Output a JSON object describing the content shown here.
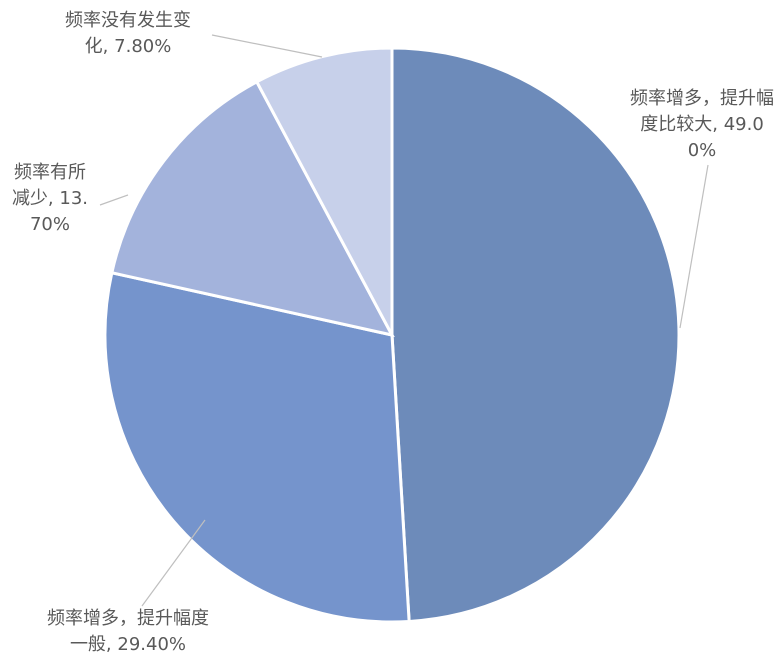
{
  "chart_data": {
    "type": "pie",
    "categories": [
      "频率增多，提升幅度比较大,",
      "频率增多，提升幅度一般,",
      "频率有所减少,",
      "频率没有发生变化,"
    ],
    "values": [
      49.0,
      29.4,
      13.7,
      7.8
    ],
    "value_labels": [
      "49.00%",
      "29.40%",
      "13.70%",
      "7.80%"
    ],
    "colors": [
      "#6d8bba",
      "#7594cc",
      "#a3b3dc",
      "#c7d0ea"
    ]
  }
}
